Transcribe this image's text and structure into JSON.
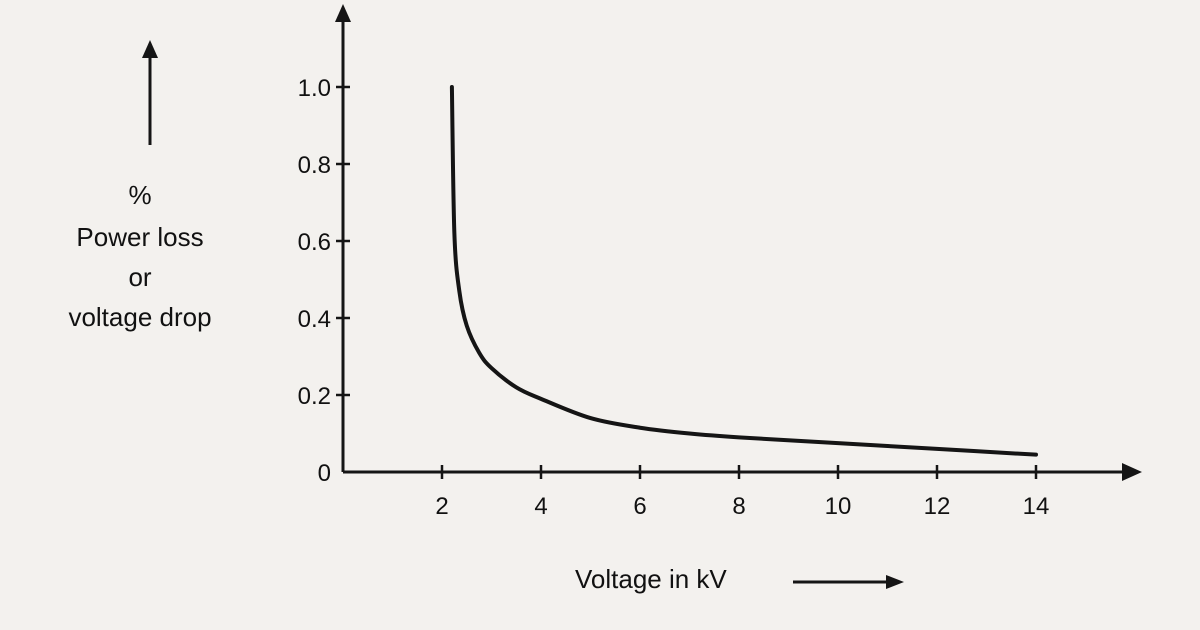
{
  "chart_data": {
    "type": "line",
    "title": "",
    "ylabel_lines": [
      "%",
      "Power loss",
      "or",
      "voltage drop"
    ],
    "xlabel": "Voltage in kV",
    "x_ticks": [
      "2",
      "4",
      "6",
      "8",
      "10",
      "12",
      "14"
    ],
    "y_ticks": [
      "0",
      "0.2",
      "0.4",
      "0.6",
      "0.8",
      "1.0"
    ],
    "xlim": [
      0,
      16
    ],
    "ylim": [
      0,
      1.0
    ],
    "grid": false,
    "series": [
      {
        "x": [
          2.2,
          2.25,
          2.35,
          2.5,
          2.75,
          3.0,
          3.5,
          4.0,
          5.0,
          6.0,
          7.0,
          8.0,
          10.0,
          12.0,
          14.0
        ],
        "y": [
          1.0,
          0.62,
          0.47,
          0.38,
          0.31,
          0.27,
          0.22,
          0.19,
          0.14,
          0.115,
          0.1,
          0.09,
          0.075,
          0.06,
          0.045
        ]
      }
    ],
    "colors": {
      "line": "#151515",
      "axis": "#151515",
      "background": "#f3f1ee"
    }
  }
}
